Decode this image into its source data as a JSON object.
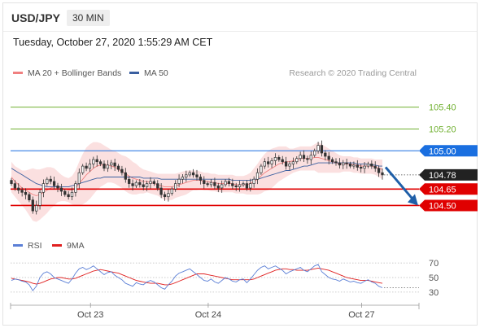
{
  "header": {
    "symbol": "USD/JPY",
    "interval": "30 MIN",
    "timestamp": "Tuesday, October 27, 2020 1:55:29 AM CET"
  },
  "legend": {
    "bollinger_label": "MA 20 + Bollinger Bands",
    "bollinger_color": "#f08080",
    "ma50_label": "MA 50",
    "ma50_color": "#3a5fa0",
    "credit": "Research © 2020 Trading Central"
  },
  "rsi_legend": {
    "rsi_label": "RSI",
    "rsi_color": "#5b7fd6",
    "ma9_label": "9MA",
    "ma9_color": "#e02020"
  },
  "chart_data": {
    "type": "candlestick",
    "price_ylim": [
      104.28,
      105.65
    ],
    "levels": [
      {
        "value": 105.4,
        "label": "105.40",
        "kind": "resistance",
        "color": "#70b030"
      },
      {
        "value": 105.2,
        "label": "105.20",
        "kind": "resistance",
        "color": "#70b030"
      },
      {
        "value": 105.0,
        "label": "105.00",
        "kind": "pivot",
        "color": "#1a6fe0"
      },
      {
        "value": 104.78,
        "label": "104.78",
        "kind": "last_price",
        "color": "#222222"
      },
      {
        "value": 104.65,
        "label": "104.65",
        "kind": "support",
        "color": "#e00000"
      },
      {
        "value": 104.5,
        "label": "104.50",
        "kind": "support",
        "color": "#e00000"
      }
    ],
    "close": [
      104.7,
      104.66,
      104.64,
      104.62,
      104.6,
      104.55,
      104.45,
      104.5,
      104.62,
      104.7,
      104.74,
      104.72,
      104.68,
      104.66,
      104.63,
      104.6,
      104.58,
      104.62,
      104.7,
      104.8,
      104.86,
      104.84,
      104.88,
      104.92,
      104.9,
      104.88,
      104.84,
      104.87,
      104.89,
      104.86,
      104.83,
      104.8,
      104.74,
      104.7,
      104.68,
      104.71,
      104.69,
      104.67,
      104.7,
      104.72,
      104.7,
      104.66,
      104.6,
      104.58,
      104.61,
      104.65,
      104.7,
      104.74,
      104.76,
      104.78,
      104.8,
      104.78,
      104.76,
      104.73,
      104.7,
      104.69,
      104.71,
      104.68,
      104.66,
      104.69,
      104.72,
      104.7,
      104.68,
      104.67,
      104.69,
      104.7,
      104.66,
      104.7,
      104.74,
      104.8,
      104.86,
      104.9,
      104.88,
      104.91,
      104.94,
      104.92,
      104.9,
      104.86,
      104.88,
      104.9,
      104.93,
      104.96,
      104.93,
      104.92,
      104.96,
      105.0,
      105.05,
      104.98,
      104.95,
      104.92,
      104.9,
      104.89,
      104.87,
      104.89,
      104.88,
      104.86,
      104.87,
      104.85,
      104.84,
      104.86,
      104.88,
      104.86,
      104.84,
      104.8,
      104.78
    ],
    "ma20": [
      104.76,
      104.72,
      104.69,
      104.66,
      104.64,
      104.62,
      104.6,
      104.59,
      104.6,
      104.62,
      104.64,
      104.66,
      104.67,
      104.67,
      104.66,
      104.65,
      104.64,
      104.64,
      104.66,
      104.7,
      104.74,
      104.78,
      104.81,
      104.84,
      104.86,
      104.87,
      104.87,
      104.87,
      104.86,
      104.85,
      104.83,
      104.81,
      104.79,
      104.77,
      104.75,
      104.74,
      104.73,
      104.72,
      104.72,
      104.71,
      104.7,
      104.69,
      104.68,
      104.67,
      104.67,
      104.67,
      104.68,
      104.69,
      104.7,
      104.71,
      104.72,
      104.73,
      104.73,
      104.73,
      104.72,
      104.72,
      104.71,
      104.71,
      104.7,
      104.7,
      104.7,
      104.7,
      104.7,
      104.69,
      104.69,
      104.69,
      104.69,
      104.7,
      104.72,
      104.74,
      104.77,
      104.8,
      104.82,
      104.84,
      104.86,
      104.88,
      104.89,
      104.9,
      104.9,
      104.91,
      104.92,
      104.93,
      104.93,
      104.93,
      104.93,
      104.94,
      104.94,
      104.93,
      104.92,
      104.91,
      104.9,
      104.89,
      104.88,
      104.88,
      104.88,
      104.88,
      104.87,
      104.87,
      104.86,
      104.86,
      104.86,
      104.86,
      104.85,
      104.84,
      104.83
    ],
    "bb_width": [
      0.14,
      0.14,
      0.15,
      0.16,
      0.18,
      0.21,
      0.24,
      0.24,
      0.23,
      0.22,
      0.21,
      0.19,
      0.17,
      0.14,
      0.12,
      0.11,
      0.11,
      0.13,
      0.16,
      0.2,
      0.23,
      0.25,
      0.25,
      0.24,
      0.22,
      0.2,
      0.18,
      0.16,
      0.15,
      0.15,
      0.15,
      0.15,
      0.16,
      0.16,
      0.15,
      0.14,
      0.12,
      0.11,
      0.1,
      0.1,
      0.1,
      0.1,
      0.11,
      0.12,
      0.12,
      0.12,
      0.11,
      0.11,
      0.11,
      0.11,
      0.1,
      0.09,
      0.09,
      0.08,
      0.08,
      0.08,
      0.08,
      0.08,
      0.08,
      0.08,
      0.08,
      0.08,
      0.08,
      0.08,
      0.08,
      0.08,
      0.09,
      0.1,
      0.12,
      0.14,
      0.16,
      0.17,
      0.18,
      0.18,
      0.17,
      0.16,
      0.15,
      0.14,
      0.12,
      0.11,
      0.11,
      0.11,
      0.11,
      0.11,
      0.11,
      0.12,
      0.14,
      0.13,
      0.12,
      0.11,
      0.1,
      0.09,
      0.08,
      0.07,
      0.07,
      0.07,
      0.07,
      0.07,
      0.07,
      0.07,
      0.07,
      0.07,
      0.07,
      0.08,
      0.09
    ],
    "ma50": [
      104.84,
      104.82,
      104.8,
      104.78,
      104.76,
      104.74,
      104.72,
      104.7,
      104.69,
      104.68,
      104.67,
      104.67,
      104.67,
      104.67,
      104.67,
      104.67,
      104.67,
      104.68,
      104.69,
      104.7,
      104.71,
      104.72,
      104.73,
      104.74,
      104.75,
      104.75,
      104.76,
      104.76,
      104.76,
      104.76,
      104.76,
      104.76,
      104.76,
      104.76,
      104.76,
      104.76,
      104.76,
      104.75,
      104.75,
      104.75,
      104.75,
      104.75,
      104.74,
      104.74,
      104.74,
      104.74,
      104.74,
      104.74,
      104.74,
      104.74,
      104.74,
      104.74,
      104.74,
      104.74,
      104.74,
      104.74,
      104.74,
      104.74,
      104.74,
      104.74,
      104.74,
      104.74,
      104.73,
      104.73,
      104.73,
      104.73,
      104.73,
      104.73,
      104.74,
      104.74,
      104.75,
      104.76,
      104.77,
      104.78,
      104.79,
      104.8,
      104.81,
      104.82,
      104.82,
      104.83,
      104.84,
      104.85,
      104.86,
      104.86,
      104.87,
      104.88,
      104.89,
      104.89,
      104.89,
      104.89,
      104.89,
      104.89,
      104.89,
      104.89,
      104.89,
      104.89,
      104.89,
      104.88,
      104.88,
      104.88,
      104.88,
      104.87,
      104.87,
      104.86,
      104.86
    ],
    "forecast_arrow": {
      "from": 104.85,
      "to": 104.5
    },
    "rsi_ylim": [
      22,
      78
    ],
    "rsi_levels": [
      {
        "value": 70,
        "label": "70"
      },
      {
        "value": 50,
        "label": "50"
      },
      {
        "value": 30,
        "label": "30"
      }
    ],
    "rsi": [
      46,
      48,
      47,
      45,
      44,
      40,
      32,
      38,
      50,
      56,
      58,
      55,
      50,
      48,
      46,
      44,
      42,
      48,
      56,
      62,
      64,
      61,
      63,
      66,
      62,
      58,
      54,
      57,
      58,
      53,
      50,
      47,
      42,
      40,
      38,
      43,
      41,
      40,
      44,
      46,
      44,
      40,
      36,
      34,
      40,
      45,
      52,
      56,
      58,
      60,
      62,
      58,
      54,
      50,
      46,
      45,
      48,
      44,
      42,
      46,
      50,
      48,
      45,
      44,
      47,
      48,
      43,
      48,
      54,
      60,
      64,
      66,
      62,
      64,
      66,
      63,
      60,
      55,
      58,
      60,
      62,
      64,
      60,
      58,
      62,
      66,
      68,
      58,
      54,
      50,
      48,
      47,
      45,
      48,
      46,
      44,
      45,
      43,
      42,
      45,
      47,
      44,
      42,
      38,
      36
    ],
    "rsi_ma9": [
      49,
      48,
      47,
      46,
      45,
      44,
      42,
      41,
      42,
      44,
      46,
      48,
      49,
      50,
      50,
      49,
      48,
      48,
      49,
      51,
      53,
      55,
      57,
      59,
      60,
      61,
      60,
      59,
      58,
      57,
      56,
      54,
      52,
      50,
      48,
      46,
      45,
      44,
      43,
      42,
      42,
      42,
      41,
      40,
      40,
      41,
      43,
      45,
      47,
      49,
      51,
      53,
      55,
      55,
      55,
      54,
      53,
      52,
      51,
      50,
      49,
      48,
      47,
      47,
      47,
      47,
      47,
      47,
      48,
      50,
      52,
      54,
      56,
      58,
      60,
      61,
      62,
      62,
      61,
      61,
      60,
      60,
      60,
      60,
      61,
      62,
      63,
      62,
      61,
      60,
      58,
      56,
      54,
      52,
      50,
      49,
      48,
      47,
      46,
      46,
      46,
      45,
      44,
      43,
      42
    ],
    "x_ticks": [
      {
        "index": 24,
        "label": "Oct 23"
      },
      {
        "index": 57,
        "label": "Oct 24"
      },
      {
        "index": 100,
        "label": "Oct 27"
      }
    ]
  }
}
